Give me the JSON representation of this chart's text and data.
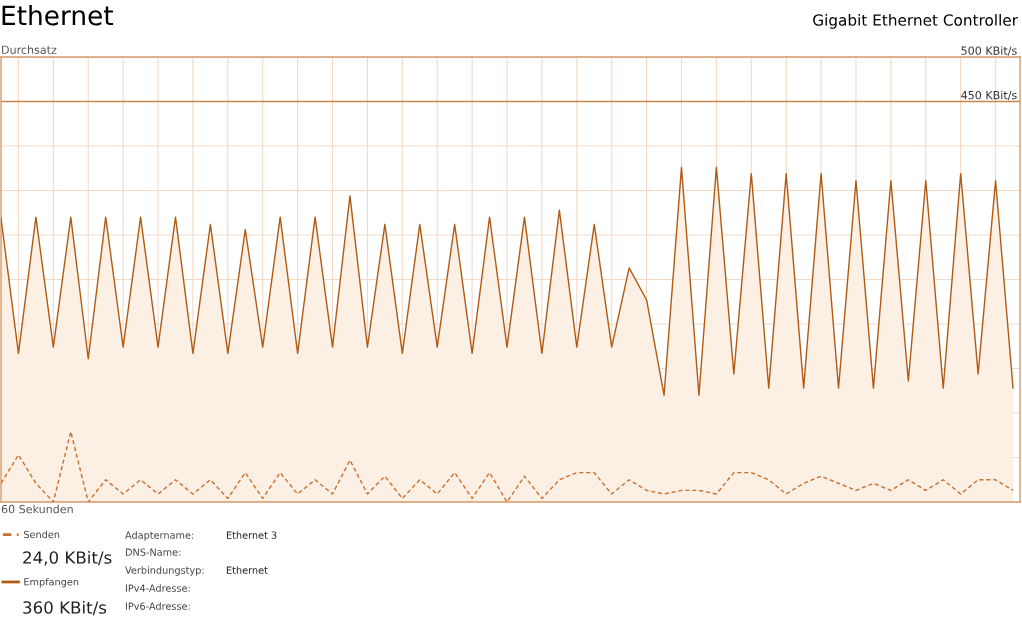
{
  "chart_data": {
    "type": "area",
    "title": "Ethernet",
    "subtitle": "Gigabit Ethernet Controller",
    "ylabel": "Durchsatz",
    "xlabel": "60 Sekunden",
    "categories": [
      null,
      null,
      null,
      null,
      null,
      null,
      null,
      null,
      null,
      null,
      null,
      null,
      null,
      null,
      null,
      null,
      null,
      null,
      null,
      null,
      null,
      null,
      null,
      null,
      null,
      null,
      null,
      null,
      null,
      null,
      null,
      null,
      null,
      null,
      null,
      null,
      null,
      null,
      null,
      null,
      null,
      null,
      null,
      null,
      null,
      null,
      null,
      null,
      null,
      null,
      null,
      null,
      null,
      null,
      null,
      null,
      null,
      null,
      null
    ],
    "series": [
      {
        "name": "Senden",
        "type": "line",
        "line_style": "dashed",
        "color": "#c8702e",
        "values": [
          21,
          53,
          21,
          0,
          79,
          0,
          25,
          9,
          25,
          9,
          25,
          9,
          25,
          4,
          33,
          4,
          33,
          9,
          25,
          9,
          47,
          9,
          29,
          4,
          25,
          9,
          33,
          4,
          33,
          0,
          29,
          4,
          25,
          33,
          33,
          9,
          25,
          13,
          9,
          13,
          13,
          9,
          33,
          33,
          25,
          9,
          21,
          29,
          21,
          13,
          21,
          13,
          25,
          13,
          25,
          9,
          25,
          25,
          13
        ]
      },
      {
        "name": "Empfangen",
        "line_style": "solid",
        "color": "#b05a14",
        "values": [
          319,
          167,
          320,
          174,
          320,
          161,
          320,
          174,
          320,
          174,
          320,
          167,
          312,
          167,
          306,
          174,
          320,
          167,
          320,
          174,
          344,
          174,
          312,
          167,
          312,
          174,
          312,
          167,
          320,
          174,
          320,
          167,
          328,
          174,
          312,
          174,
          263,
          227,
          120,
          376,
          120,
          376,
          144,
          369,
          128,
          369,
          128,
          369,
          128,
          361,
          128,
          361,
          136,
          361,
          128,
          369,
          144,
          361,
          128
        ]
      }
    ],
    "ylim": [
      0,
      500
    ],
    "yticks": [
      {
        "value": 0,
        "label": null
      },
      {
        "value": 50,
        "label": null
      },
      {
        "value": 100,
        "label": null
      },
      {
        "value": 150,
        "label": null
      },
      {
        "value": 200,
        "label": null
      },
      {
        "value": 250,
        "label": null
      },
      {
        "value": 300,
        "label": null
      },
      {
        "value": 350,
        "label": null
      },
      {
        "value": 400,
        "label": null
      },
      {
        "value": 450,
        "label": "450 KBit/s"
      },
      {
        "value": 500,
        "label": "500 KBit/s"
      }
    ],
    "ref_lines": [
      {
        "axis": "y",
        "value": 450,
        "color": "#c8864a"
      }
    ],
    "grid": true,
    "legend": "bottom left",
    "marker": "none",
    "tick_labels": "y",
    "annotations": [
      "24,0 KBit/s",
      "360 KBit/s",
      "Adaptername:",
      "Ethernet 3",
      "DNS-Name:",
      "Verbindungstyp:",
      "Ethernet",
      "IPv4-Adresse:",
      "IPv6-Adresse:"
    ]
  }
}
